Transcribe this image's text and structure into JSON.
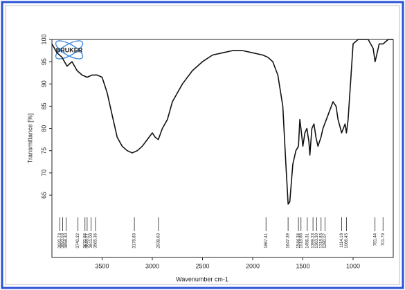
{
  "chart_data": {
    "type": "line",
    "logo": "BRUKER",
    "x_label": "Wavenumber cm-1",
    "y_label": "Transmittance [%]",
    "xlim": [
      4000,
      600
    ],
    "ylim": [
      51,
      100
    ],
    "xticks": [
      3500,
      3000,
      2500,
      2000,
      1500,
      1000
    ],
    "yticks": [
      65,
      70,
      75,
      80,
      85,
      90,
      95,
      100
    ],
    "color": "#111111",
    "x": [
      4000,
      3950,
      3900,
      3850,
      3800,
      3750,
      3700,
      3650,
      3600,
      3550,
      3500,
      3450,
      3400,
      3350,
      3300,
      3250,
      3200,
      3150,
      3100,
      3050,
      3000,
      2970,
      2940,
      2900,
      2850,
      2800,
      2700,
      2600,
      2500,
      2400,
      2300,
      2200,
      2100,
      2000,
      1900,
      1850,
      1800,
      1750,
      1700,
      1670,
      1647,
      1630,
      1600,
      1570,
      1544,
      1530,
      1519,
      1500,
      1480,
      1460,
      1440,
      1430,
      1410,
      1390,
      1370,
      1350,
      1320,
      1300,
      1250,
      1200,
      1170,
      1150,
      1114,
      1080,
      1066,
      1050,
      1020,
      1000,
      950,
      900,
      850,
      800,
      781,
      760,
      740,
      701,
      650,
      600
    ],
    "values": [
      99,
      97,
      96,
      94,
      95,
      93,
      92,
      91.5,
      92,
      92,
      91.5,
      88,
      83,
      78,
      76,
      75,
      74.5,
      75,
      76,
      77.5,
      79,
      78,
      77.5,
      80,
      82,
      86,
      90,
      93,
      95,
      96.5,
      97,
      97.5,
      97.5,
      97,
      96.5,
      96,
      95,
      92,
      85,
      72,
      63,
      63.5,
      72,
      75,
      76,
      82,
      80,
      76,
      79,
      80,
      77,
      74,
      80,
      81,
      78,
      76,
      78,
      80,
      83,
      86,
      85,
      82,
      79,
      81,
      79,
      82,
      92,
      99,
      100,
      100,
      100,
      98,
      95,
      97,
      99,
      99,
      100,
      100
    ],
    "peaks": [
      3920.73,
      3893.03,
      {
        "value": 3858.3,
        "label": "3858.30"
      },
      3740.32,
      3670.66,
      3649.21,
      {
        "value": 3611,
        "label": "3611.00"
      },
      3565.36,
      3178.83,
      2938.63,
      1867.41,
      1647.39,
      1544.34,
      1518.86,
      1456.31,
      1399.23,
      {
        "value": 1363.3,
        "label": "1363.30"
      },
      1318.83,
      1280.07,
      1114.18,
      1066.45,
      781.44,
      701.79
    ]
  }
}
